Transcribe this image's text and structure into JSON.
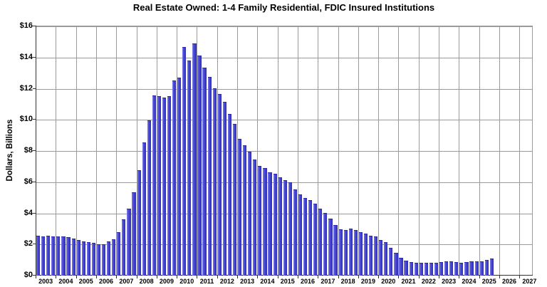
{
  "title": "Real Estate Owned: 1-4 Family Residential, FDIC Insured Institutions",
  "y_axis": {
    "label": "Dollars, Billions",
    "tick_labels": [
      "$0",
      "$2",
      "$4",
      "$6",
      "$8",
      "$10",
      "$12",
      "$14",
      "$16"
    ]
  },
  "x_axis": {
    "year_labels": [
      "2003",
      "2004",
      "2005",
      "2006",
      "2007",
      "2008",
      "2009",
      "2010",
      "2011",
      "2012",
      "2013",
      "2014",
      "2015",
      "2016",
      "2017",
      "2018",
      "2019",
      "2020",
      "2021",
      "2022",
      "2023",
      "2024",
      "2025",
      "2026",
      "2027"
    ]
  },
  "chart_data": {
    "type": "bar",
    "title": "Real Estate Owned: 1-4 Family Residential, FDIC Insured Institutions",
    "xlabel": "",
    "ylabel": "Dollars, Billions",
    "ylim": [
      0,
      16
    ],
    "y_tick_step": 2,
    "grid": "both",
    "bar_color": "#3a3ac8",
    "frequency": "quarterly",
    "x_range_years": [
      2003,
      2027
    ],
    "last_data_point": "2025 Q3",
    "values_billions_by_year": {
      "2003": [
        2.52,
        2.48,
        2.5,
        2.45
      ],
      "2004": [
        2.45,
        2.46,
        2.42,
        2.35
      ],
      "2005": [
        2.25,
        2.17,
        2.1,
        2.04
      ],
      "2006": [
        1.95,
        1.96,
        2.15,
        2.28
      ],
      "2007": [
        2.75,
        3.55,
        4.25,
        5.3
      ],
      "2008": [
        6.7,
        8.5,
        9.9,
        11.5
      ],
      "2009": [
        11.48,
        11.4,
        11.48,
        12.5
      ],
      "2010": [
        12.65,
        14.65,
        13.75,
        14.85
      ],
      "2011": [
        14.1,
        13.3,
        12.7,
        12.0
      ],
      "2012": [
        11.6,
        11.1,
        10.35,
        9.7
      ],
      "2013": [
        8.75,
        8.3,
        7.9,
        7.4
      ],
      "2014": [
        7.0,
        6.85,
        6.6,
        6.5
      ],
      "2015": [
        6.25,
        6.1,
        5.95,
        5.5
      ],
      "2016": [
        5.15,
        4.95,
        4.8,
        4.55
      ],
      "2017": [
        4.25,
        4.0,
        3.6,
        3.2
      ],
      "2018": [
        2.92,
        2.87,
        2.95,
        2.9
      ],
      "2019": [
        2.75,
        2.65,
        2.52,
        2.45
      ],
      "2020": [
        2.25,
        2.1,
        1.75,
        1.4
      ],
      "2021": [
        1.1,
        0.92,
        0.84,
        0.78
      ],
      "2022": [
        0.78,
        0.76,
        0.78,
        0.78
      ],
      "2023": [
        0.82,
        0.86,
        0.88,
        0.84
      ],
      "2024": [
        0.78,
        0.82,
        0.86,
        0.86
      ],
      "2025": [
        0.87,
        0.95,
        1.05
      ]
    }
  }
}
